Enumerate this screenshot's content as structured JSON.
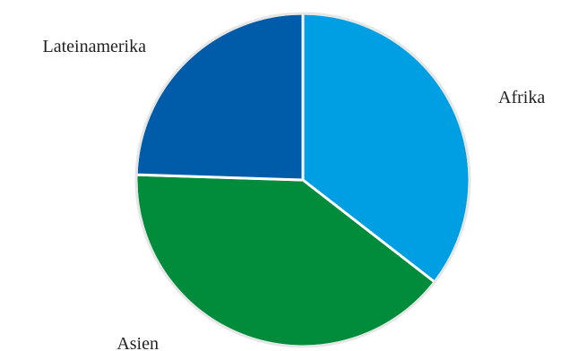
{
  "chart_data": {
    "type": "pie",
    "title": "",
    "slices": [
      {
        "label": "Afrika",
        "value": 35.5,
        "color": "#009fe3"
      },
      {
        "label": "Asien",
        "value": 40.0,
        "color": "#008c3a"
      },
      {
        "label": "Lateinamerika",
        "value": 24.5,
        "color": "#005ca9"
      }
    ],
    "start_angle_deg": 0,
    "direction": "clockwise",
    "separator_color": "#ffffff"
  }
}
